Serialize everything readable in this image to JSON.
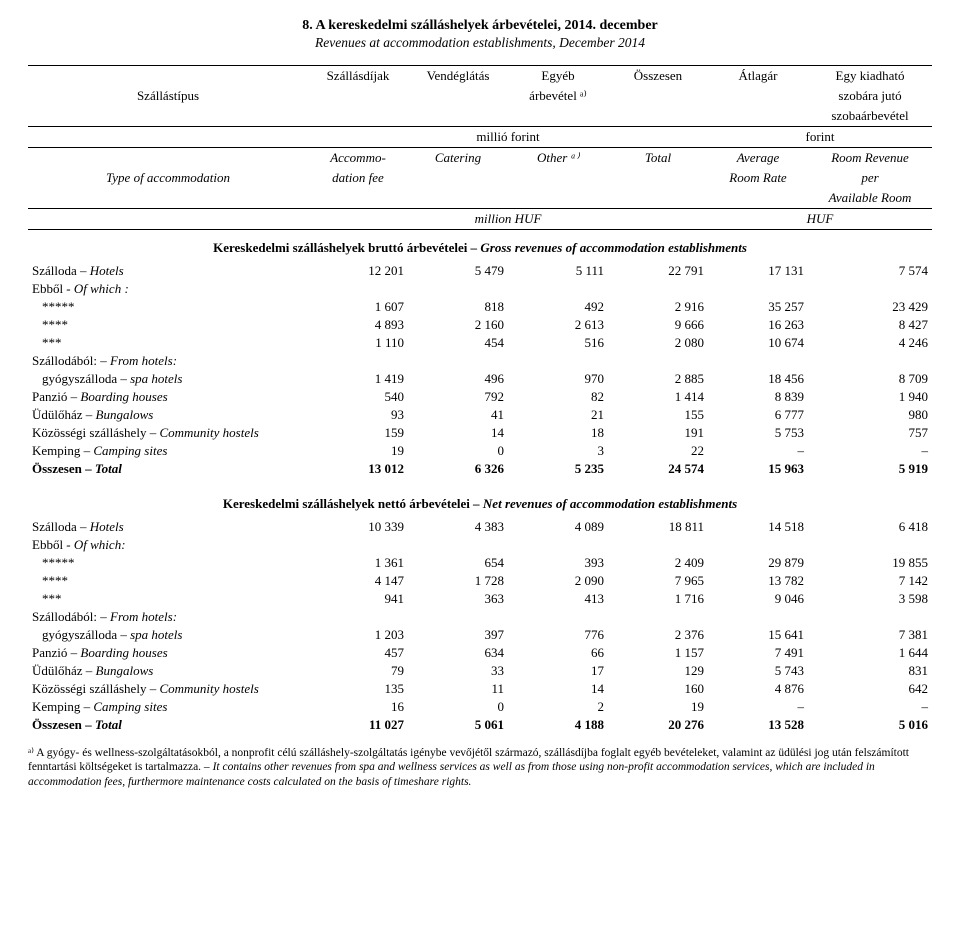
{
  "title": "8.  A kereskedelmi szálláshelyek árbevételei, 2014. december",
  "subtitle": "Revenues at accommodation establishments, December 2014",
  "header": {
    "row1_label": "Szállástípus",
    "row1_cols": [
      "Szállásdíjak",
      "Vendéglátás",
      "Egyéb",
      "Összesen",
      "Átlagár",
      "Egy kiadható"
    ],
    "row1_sub_right": "árbevétel ᵃ⁾",
    "row1_far_right": "szobára jutó",
    "row1_far_right2": "szobaárbevétel",
    "unit1_left": "millió forint",
    "unit1_right": "forint",
    "row2_label": "Type of accommodation",
    "row2_cols": [
      "Accommo-",
      "Catering",
      "Other ᵃ⁾",
      "Total",
      "Average",
      "Room Revenue"
    ],
    "row2_sub": [
      "dation fee",
      "",
      "",
      "",
      "Room Rate",
      "per"
    ],
    "row2_sub2_right": "Available Room",
    "unit2_left": "million HUF",
    "unit2_right": "HUF"
  },
  "sectionA": {
    "title": "Kereskedelmi szálláshelyek bruttó árbevételei",
    "title_it": " – Gross revenues of accommodation establishments",
    "rows": [
      {
        "label": "Szálloda – ",
        "label_it": "Hotels",
        "vals": [
          "12 201",
          "5 479",
          "5 111",
          "22 791",
          "17 131",
          "7 574"
        ]
      },
      {
        "label": "Ebből - ",
        "label_it": "Of which :",
        "indent": 0,
        "vals": [
          "",
          "",
          "",
          "",
          "",
          ""
        ]
      },
      {
        "label": "*****",
        "indent": 1,
        "vals": [
          "1 607",
          "818",
          "492",
          "2 916",
          "35 257",
          "23 429"
        ]
      },
      {
        "label": "****",
        "indent": 1,
        "vals": [
          "4 893",
          "2 160",
          "2 613",
          "9 666",
          "16 263",
          "8 427"
        ]
      },
      {
        "label": "***",
        "indent": 1,
        "vals": [
          "1 110",
          "454",
          "516",
          "2 080",
          "10 674",
          "4 246"
        ]
      },
      {
        "label": "Szállodából: – ",
        "label_it": "From hotels:",
        "vals": [
          "",
          "",
          "",
          "",
          "",
          ""
        ]
      },
      {
        "label": "gyógyszálloda – ",
        "label_it": "spa hotels",
        "indent": 1,
        "vals": [
          "1 419",
          "496",
          "970",
          "2 885",
          "18 456",
          "8 709"
        ]
      },
      {
        "label": "Panzió – ",
        "label_it": "Boarding houses",
        "vals": [
          "540",
          "792",
          "82",
          "1 414",
          "8 839",
          "1 940"
        ]
      },
      {
        "label": "Üdülőház – ",
        "label_it": "Bungalows",
        "vals": [
          "93",
          "41",
          "21",
          "155",
          "6 777",
          "980"
        ]
      },
      {
        "label": "Közösségi szálláshely – ",
        "label_it": "Community hostels",
        "vals": [
          "159",
          "14",
          "18",
          "191",
          "5 753",
          "757"
        ]
      },
      {
        "label": "Kemping – ",
        "label_it": "Camping sites",
        "vals": [
          "19",
          "0",
          "3",
          "22",
          "–",
          "–"
        ]
      },
      {
        "label": "Összesen – ",
        "label_it": "Total",
        "bold": true,
        "vals": [
          "13 012",
          "6 326",
          "5 235",
          "24 574",
          "15 963",
          "5 919"
        ]
      }
    ]
  },
  "sectionB": {
    "title": "Kereskedelmi szálláshelyek nettó árbevételei",
    "title_it": " – Net revenues of accommodation establishments",
    "rows": [
      {
        "label": "Szálloda – ",
        "label_it": "Hotels",
        "vals": [
          "10 339",
          "4 383",
          "4 089",
          "18 811",
          "14 518",
          "6 418"
        ]
      },
      {
        "label": "Ebből - ",
        "label_it": "Of which:",
        "vals": [
          "",
          "",
          "",
          "",
          "",
          ""
        ]
      },
      {
        "label": "*****",
        "indent": 1,
        "vals": [
          "1 361",
          "654",
          "393",
          "2 409",
          "29 879",
          "19 855"
        ]
      },
      {
        "label": "****",
        "indent": 1,
        "vals": [
          "4 147",
          "1 728",
          "2 090",
          "7 965",
          "13 782",
          "7 142"
        ]
      },
      {
        "label": "***",
        "indent": 1,
        "vals": [
          "941",
          "363",
          "413",
          "1 716",
          "9 046",
          "3 598"
        ]
      },
      {
        "label": "Szállodából: – ",
        "label_it": "From hotels:",
        "vals": [
          "",
          "",
          "",
          "",
          "",
          ""
        ]
      },
      {
        "label": "gyógyszálloda – ",
        "label_it": "spa hotels",
        "indent": 1,
        "vals": [
          "1 203",
          "397",
          "776",
          "2 376",
          "15 641",
          "7 381"
        ]
      },
      {
        "label": "Panzió – ",
        "label_it": "Boarding houses",
        "vals": [
          "457",
          "634",
          "66",
          "1 157",
          "7 491",
          "1 644"
        ]
      },
      {
        "label": "Üdülőház – ",
        "label_it": "Bungalows",
        "vals": [
          "79",
          "33",
          "17",
          "129",
          "5 743",
          "831"
        ]
      },
      {
        "label": "Közösségi szálláshely – ",
        "label_it": "Community hostels",
        "vals": [
          "135",
          "11",
          "14",
          "160",
          "4 876",
          "642"
        ]
      },
      {
        "label": "Kemping – ",
        "label_it": "Camping sites",
        "vals": [
          "16",
          "0",
          "2",
          "19",
          "–",
          "–"
        ]
      },
      {
        "label": "Összesen – ",
        "label_it": "Total",
        "bold": true,
        "vals": [
          "11 027",
          "5 061",
          "4 188",
          "20 276",
          "13 528",
          "5 016"
        ]
      }
    ]
  },
  "footnote": {
    "hu": "ᵃ⁾ A gyógy- és wellness-szolgáltatásokból, a nonprofit célú szálláshely-szolgáltatás igénybe vevőjétől származó, szállásdíjba foglalt egyéb bevételeket, valamint az üdülési jog után felszámított fenntartási költségeket is tartalmazza. –",
    "en": "It contains other revenues from spa and wellness services as well as from those using non-profit accommodation services, which are included in accommodation fees, furthermore maintenance costs calculated on the basis of timeshare rights."
  }
}
